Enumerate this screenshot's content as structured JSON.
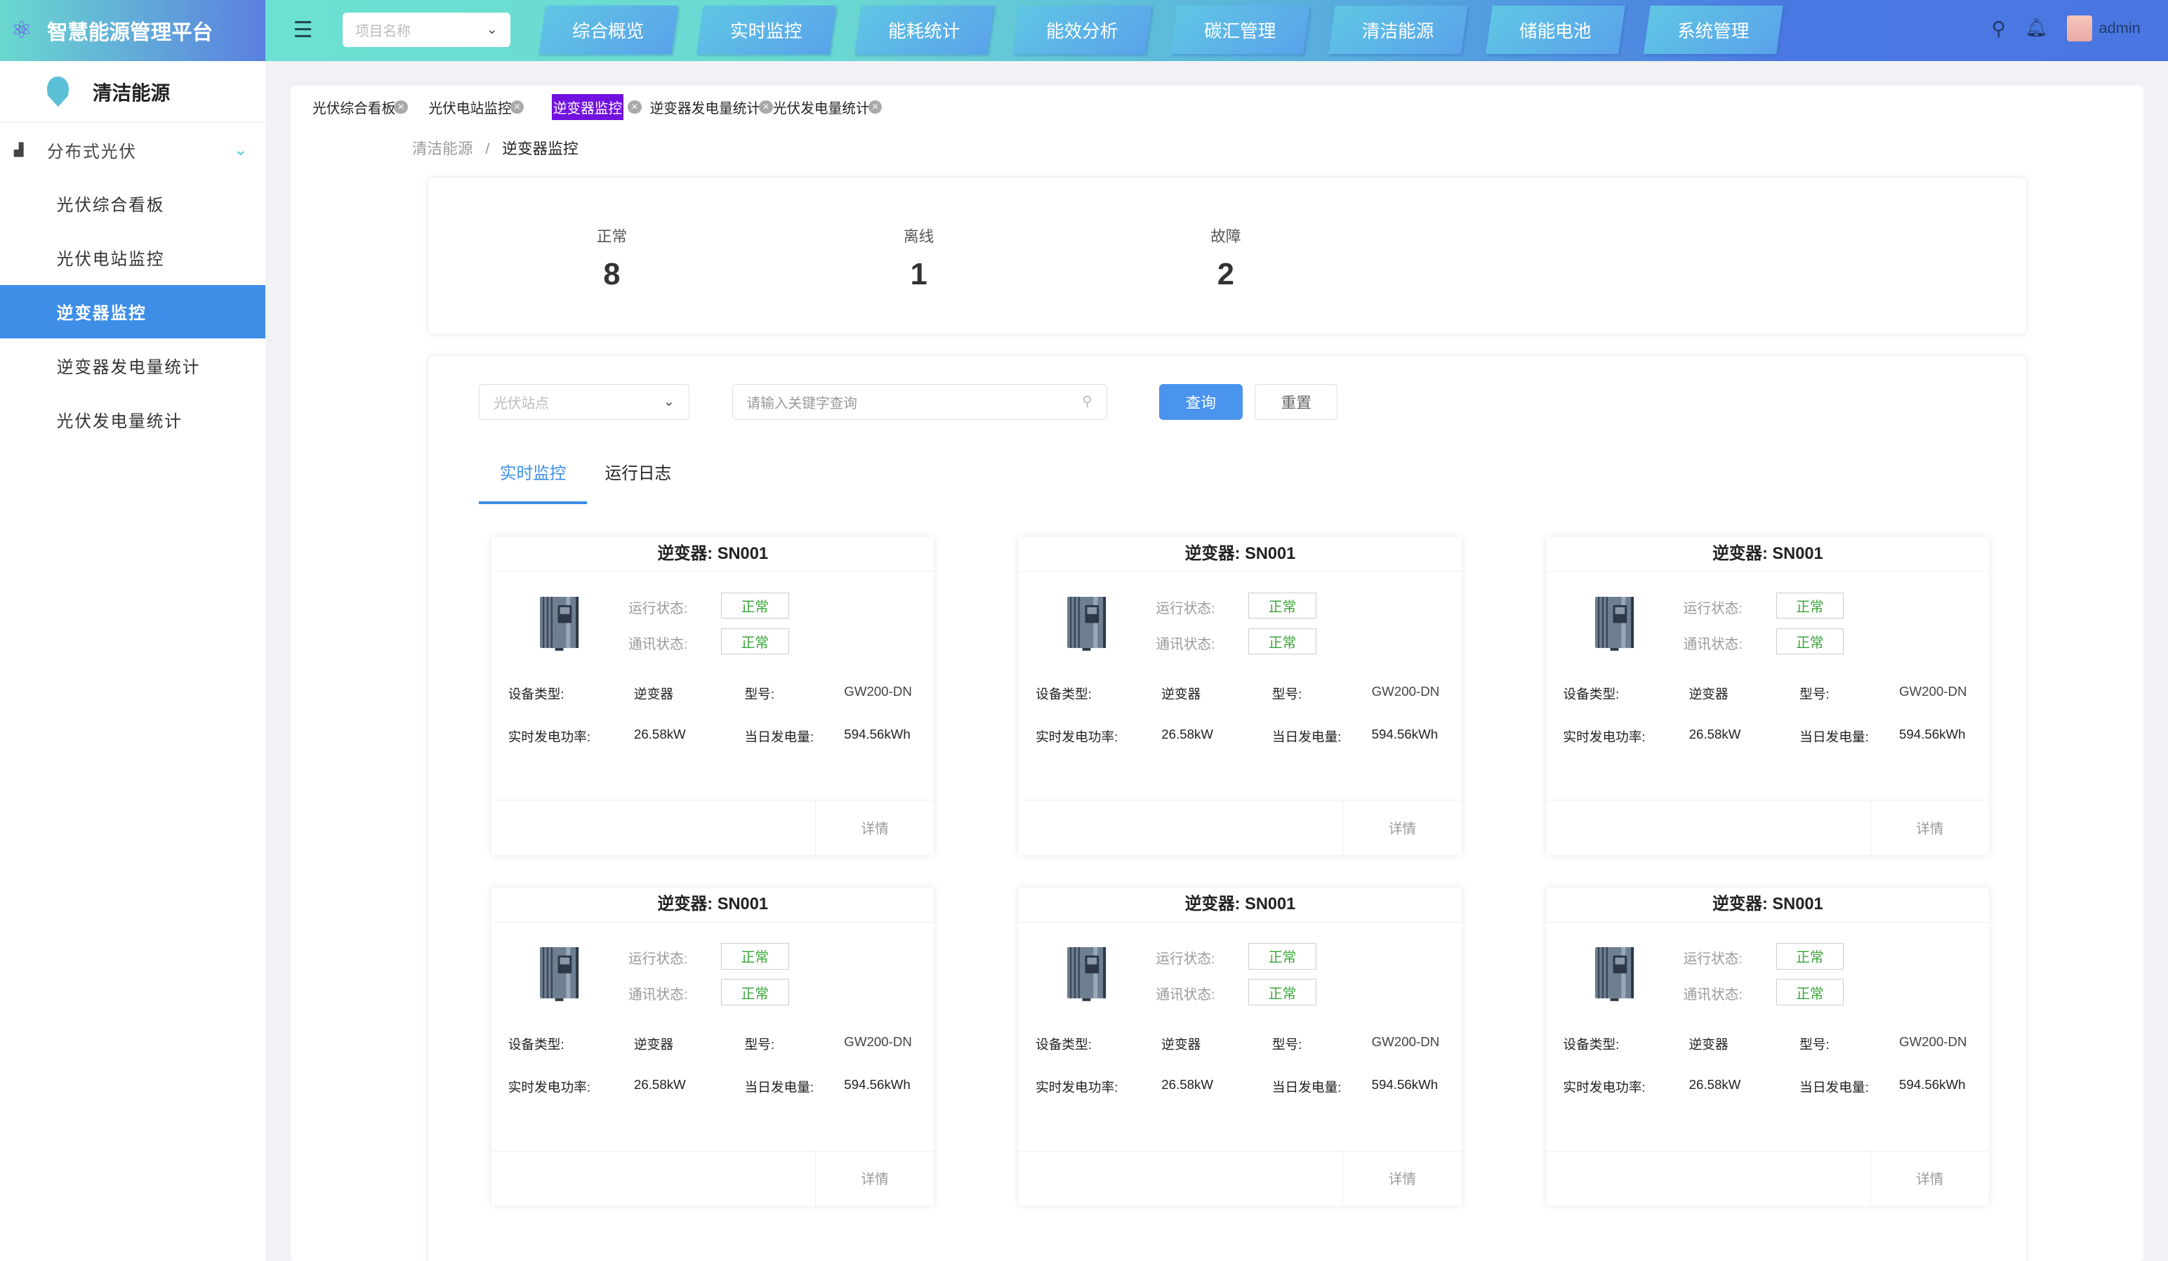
{
  "app": {
    "title": "智慧能源管理平台",
    "logo_icon": "atom-icon"
  },
  "header": {
    "project_placeholder": "项目名称",
    "nav": [
      "综合概览",
      "实时监控",
      "能耗统计",
      "能效分析",
      "碳汇管理",
      "清洁能源",
      "储能电池",
      "系统管理"
    ],
    "user": "admin",
    "gradient": [
      "#6de0d3",
      "#4a76e2"
    ]
  },
  "sidebar": {
    "section": "清洁能源",
    "group": "分布式光伏",
    "items": [
      "光伏综合看板",
      "光伏电站监控",
      "逆变器监控",
      "逆变器发电量统计",
      "光伏发电量统计"
    ],
    "active_index": 2,
    "active_color": "#3e8ee8"
  },
  "tabs": {
    "items": [
      "光伏综合看板",
      "光伏电站监控",
      "逆变器监控",
      "逆变器发电量统计",
      "光伏发电量统计"
    ],
    "active_index": 2,
    "active_color": "#7212e0"
  },
  "breadcrumb": {
    "parent": "清洁能源",
    "separator": "/",
    "current": "逆变器监控"
  },
  "stats": [
    {
      "label": "正常",
      "value": "8"
    },
    {
      "label": "离线",
      "value": "1"
    },
    {
      "label": "故障",
      "value": "2"
    }
  ],
  "filters": {
    "station_placeholder": "光伏站点",
    "search_placeholder": "请输入关键字查询",
    "query": "查询",
    "reset": "重置"
  },
  "view_tabs": {
    "items": [
      "实时监控",
      "运行日志"
    ],
    "active_index": 0
  },
  "labels": {
    "run_status": "运行状态:",
    "comm_status": "通讯状态:",
    "device_type": "设备类型:",
    "model": "型号:",
    "power": "实时发电功率:",
    "energy": "当日发电量:",
    "detail": "详情"
  },
  "cards": [
    {
      "title": "逆变器: SN001",
      "run": "正常",
      "comm": "正常",
      "type": "逆变器",
      "model": "GW200-DN",
      "power": "26.58kW",
      "energy": "594.56kWh"
    },
    {
      "title": "逆变器: SN001",
      "run": "正常",
      "comm": "正常",
      "type": "逆变器",
      "model": "GW200-DN",
      "power": "26.58kW",
      "energy": "594.56kWh"
    },
    {
      "title": "逆变器: SN001",
      "run": "正常",
      "comm": "正常",
      "type": "逆变器",
      "model": "GW200-DN",
      "power": "26.58kW",
      "energy": "594.56kWh"
    },
    {
      "title": "逆变器: SN001",
      "run": "正常",
      "comm": "正常",
      "type": "逆变器",
      "model": "GW200-DN",
      "power": "26.58kW",
      "energy": "594.56kWh"
    },
    {
      "title": "逆变器: SN001",
      "run": "正常",
      "comm": "正常",
      "type": "逆变器",
      "model": "GW200-DN",
      "power": "26.58kW",
      "energy": "594.56kWh"
    },
    {
      "title": "逆变器: SN001",
      "run": "正常",
      "comm": "正常",
      "type": "逆变器",
      "model": "GW200-DN",
      "power": "26.58kW",
      "energy": "594.56kWh"
    }
  ]
}
